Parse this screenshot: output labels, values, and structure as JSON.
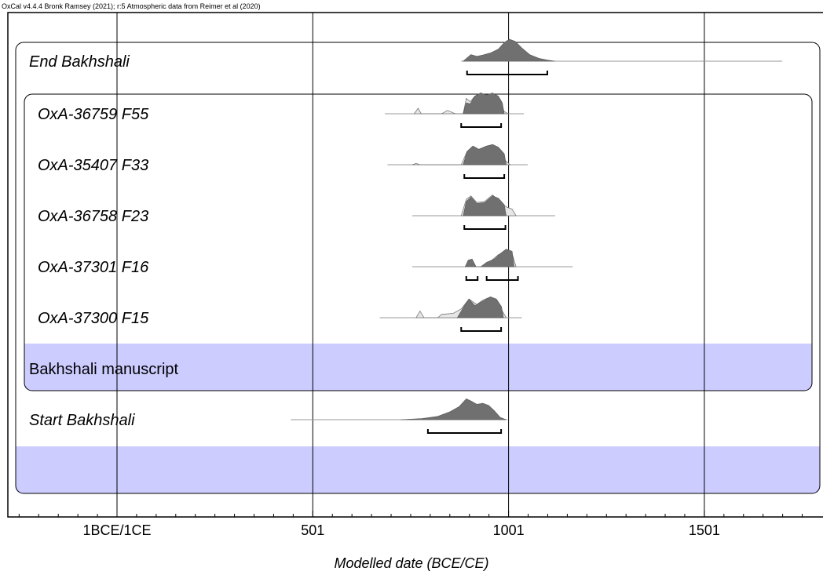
{
  "header": "OxCal v4.4.4 Bronk Ramsey (2021); r:5 Atmospheric data from Reimer et al (2020)",
  "chart_data": {
    "type": "area",
    "title": "",
    "xlabel": "Modelled date (BCE/CE)",
    "ylabel": "",
    "xlim": [
      -275,
      1805
    ],
    "xticks": [
      {
        "value": 1,
        "label": "1BCE/1CE"
      },
      {
        "value": 501,
        "label": "501"
      },
      {
        "value": 1001,
        "label": "1001"
      },
      {
        "value": 1501,
        "label": "1501"
      }
    ],
    "minor_tick_step": 50,
    "grid": true,
    "groups": [
      {
        "name": "Bakhshali manuscript",
        "kind": "phase",
        "band_color": "#ccccff"
      },
      {
        "name": "",
        "kind": "sequence",
        "band_color": "#ccccff"
      }
    ],
    "rows": [
      {
        "name": "End Bakhshali",
        "italic": true,
        "range": [
          880,
          1700
        ],
        "posterior": [
          [
            885,
            0
          ],
          [
            895,
            0.15
          ],
          [
            905,
            0.3
          ],
          [
            920,
            0.22
          ],
          [
            935,
            0.28
          ],
          [
            955,
            0.38
          ],
          [
            975,
            0.55
          ],
          [
            990,
            0.85
          ],
          [
            1003,
            1
          ],
          [
            1018,
            0.9
          ],
          [
            1035,
            0.6
          ],
          [
            1055,
            0.3
          ],
          [
            1080,
            0.12
          ],
          [
            1100,
            0.05
          ],
          [
            1120,
            0
          ]
        ],
        "hpd": [
          [
            895,
            1100
          ]
        ]
      },
      {
        "name": "OxA-36759 F55",
        "italic": true,
        "range": [
          685,
          1040
        ],
        "prior": [
          [
            760,
            0
          ],
          [
            770,
            0.25
          ],
          [
            778,
            0
          ],
          [
            830,
            0
          ],
          [
            845,
            0.15
          ],
          [
            865,
            0
          ],
          [
            885,
            0
          ],
          [
            893,
            0.7
          ],
          [
            903,
            0.55
          ],
          [
            915,
            0.8
          ],
          [
            930,
            0.95
          ],
          [
            945,
            0.8
          ],
          [
            960,
            0.9
          ],
          [
            975,
            0.65
          ],
          [
            990,
            0.1
          ],
          [
            1000,
            0
          ]
        ],
        "posterior": [
          [
            885,
            0
          ],
          [
            893,
            0.5
          ],
          [
            903,
            0.45
          ],
          [
            915,
            0.8
          ],
          [
            930,
            0.95
          ],
          [
            945,
            0.85
          ],
          [
            960,
            0.95
          ],
          [
            975,
            0.8
          ],
          [
            985,
            0.5
          ],
          [
            990,
            0
          ]
        ],
        "hpd": [
          [
            880,
            982
          ]
        ]
      },
      {
        "name": "OxA-35407 F33",
        "italic": true,
        "range": [
          692,
          1050
        ],
        "prior": [
          [
            755,
            0
          ],
          [
            765,
            0.06
          ],
          [
            775,
            0
          ],
          [
            880,
            0
          ],
          [
            895,
            0.6
          ],
          [
            910,
            0.85
          ],
          [
            925,
            0.7
          ],
          [
            945,
            0.85
          ],
          [
            960,
            0.9
          ],
          [
            975,
            0.6
          ],
          [
            995,
            0.15
          ],
          [
            1005,
            0
          ]
        ],
        "posterior": [
          [
            885,
            0
          ],
          [
            895,
            0.6
          ],
          [
            910,
            0.85
          ],
          [
            925,
            0.7
          ],
          [
            945,
            0.85
          ],
          [
            960,
            0.92
          ],
          [
            975,
            0.8
          ],
          [
            990,
            0.5
          ],
          [
            995,
            0
          ]
        ],
        "hpd": [
          [
            888,
            990
          ]
        ]
      },
      {
        "name": "OxA-36758 F23",
        "italic": true,
        "range": [
          755,
          1120
        ],
        "prior": [
          [
            880,
            0
          ],
          [
            893,
            0.75
          ],
          [
            905,
            0.9
          ],
          [
            920,
            0.6
          ],
          [
            940,
            0.65
          ],
          [
            960,
            0.95
          ],
          [
            975,
            0.7
          ],
          [
            995,
            0.4
          ],
          [
            1010,
            0.3
          ],
          [
            1020,
            0
          ]
        ],
        "posterior": [
          [
            885,
            0
          ],
          [
            893,
            0.65
          ],
          [
            905,
            0.85
          ],
          [
            920,
            0.55
          ],
          [
            940,
            0.6
          ],
          [
            960,
            0.9
          ],
          [
            975,
            0.8
          ],
          [
            990,
            0.5
          ],
          [
            995,
            0
          ]
        ],
        "hpd": [
          [
            888,
            993
          ]
        ]
      },
      {
        "name": "OxA-37301 F16",
        "italic": true,
        "range": [
          755,
          1165
        ],
        "prior": [
          [
            935,
            0
          ],
          [
            955,
            0.25
          ],
          [
            975,
            0.55
          ],
          [
            995,
            0.65
          ],
          [
            1010,
            0.6
          ],
          [
            1020,
            0
          ]
        ],
        "posterior": [
          [
            890,
            0
          ],
          [
            898,
            0.3
          ],
          [
            908,
            0.35
          ],
          [
            918,
            0
          ],
          [
            930,
            0
          ],
          [
            945,
            0.2
          ],
          [
            965,
            0.35
          ],
          [
            980,
            0.6
          ],
          [
            995,
            0.8
          ],
          [
            1010,
            0.7
          ],
          [
            1015,
            0
          ]
        ],
        "hpd": [
          [
            893,
            922
          ],
          [
            945,
            1025
          ]
        ]
      },
      {
        "name": "OxA-37300 F15",
        "italic": true,
        "range": [
          672,
          1035
        ],
        "prior": [
          [
            765,
            0
          ],
          [
            775,
            0.3
          ],
          [
            785,
            0
          ],
          [
            820,
            0
          ],
          [
            830,
            0.15
          ],
          [
            860,
            0.2
          ],
          [
            880,
            0.4
          ],
          [
            900,
            0.85
          ],
          [
            920,
            0.6
          ],
          [
            935,
            0.8
          ],
          [
            955,
            0.95
          ],
          [
            970,
            0.75
          ],
          [
            985,
            0.3
          ],
          [
            995,
            0
          ]
        ],
        "posterior": [
          [
            870,
            0
          ],
          [
            885,
            0.45
          ],
          [
            900,
            0.85
          ],
          [
            915,
            0.55
          ],
          [
            935,
            0.75
          ],
          [
            955,
            0.95
          ],
          [
            970,
            0.85
          ],
          [
            983,
            0.5
          ],
          [
            988,
            0
          ]
        ],
        "hpd": [
          [
            880,
            982
          ]
        ]
      },
      {
        "name": "Bakhshali manuscript",
        "italic": false,
        "group_label": true
      },
      {
        "name": "Start Bakhshali",
        "italic": true,
        "range": [
          445,
          998
        ],
        "posterior": [
          [
            725,
            0
          ],
          [
            780,
            0.05
          ],
          [
            820,
            0.15
          ],
          [
            850,
            0.35
          ],
          [
            875,
            0.6
          ],
          [
            893,
            0.95
          ],
          [
            905,
            0.85
          ],
          [
            920,
            0.7
          ],
          [
            935,
            0.75
          ],
          [
            950,
            0.65
          ],
          [
            965,
            0.4
          ],
          [
            980,
            0.1
          ],
          [
            995,
            0
          ]
        ],
        "hpd": [
          [
            795,
            982
          ]
        ]
      }
    ]
  }
}
